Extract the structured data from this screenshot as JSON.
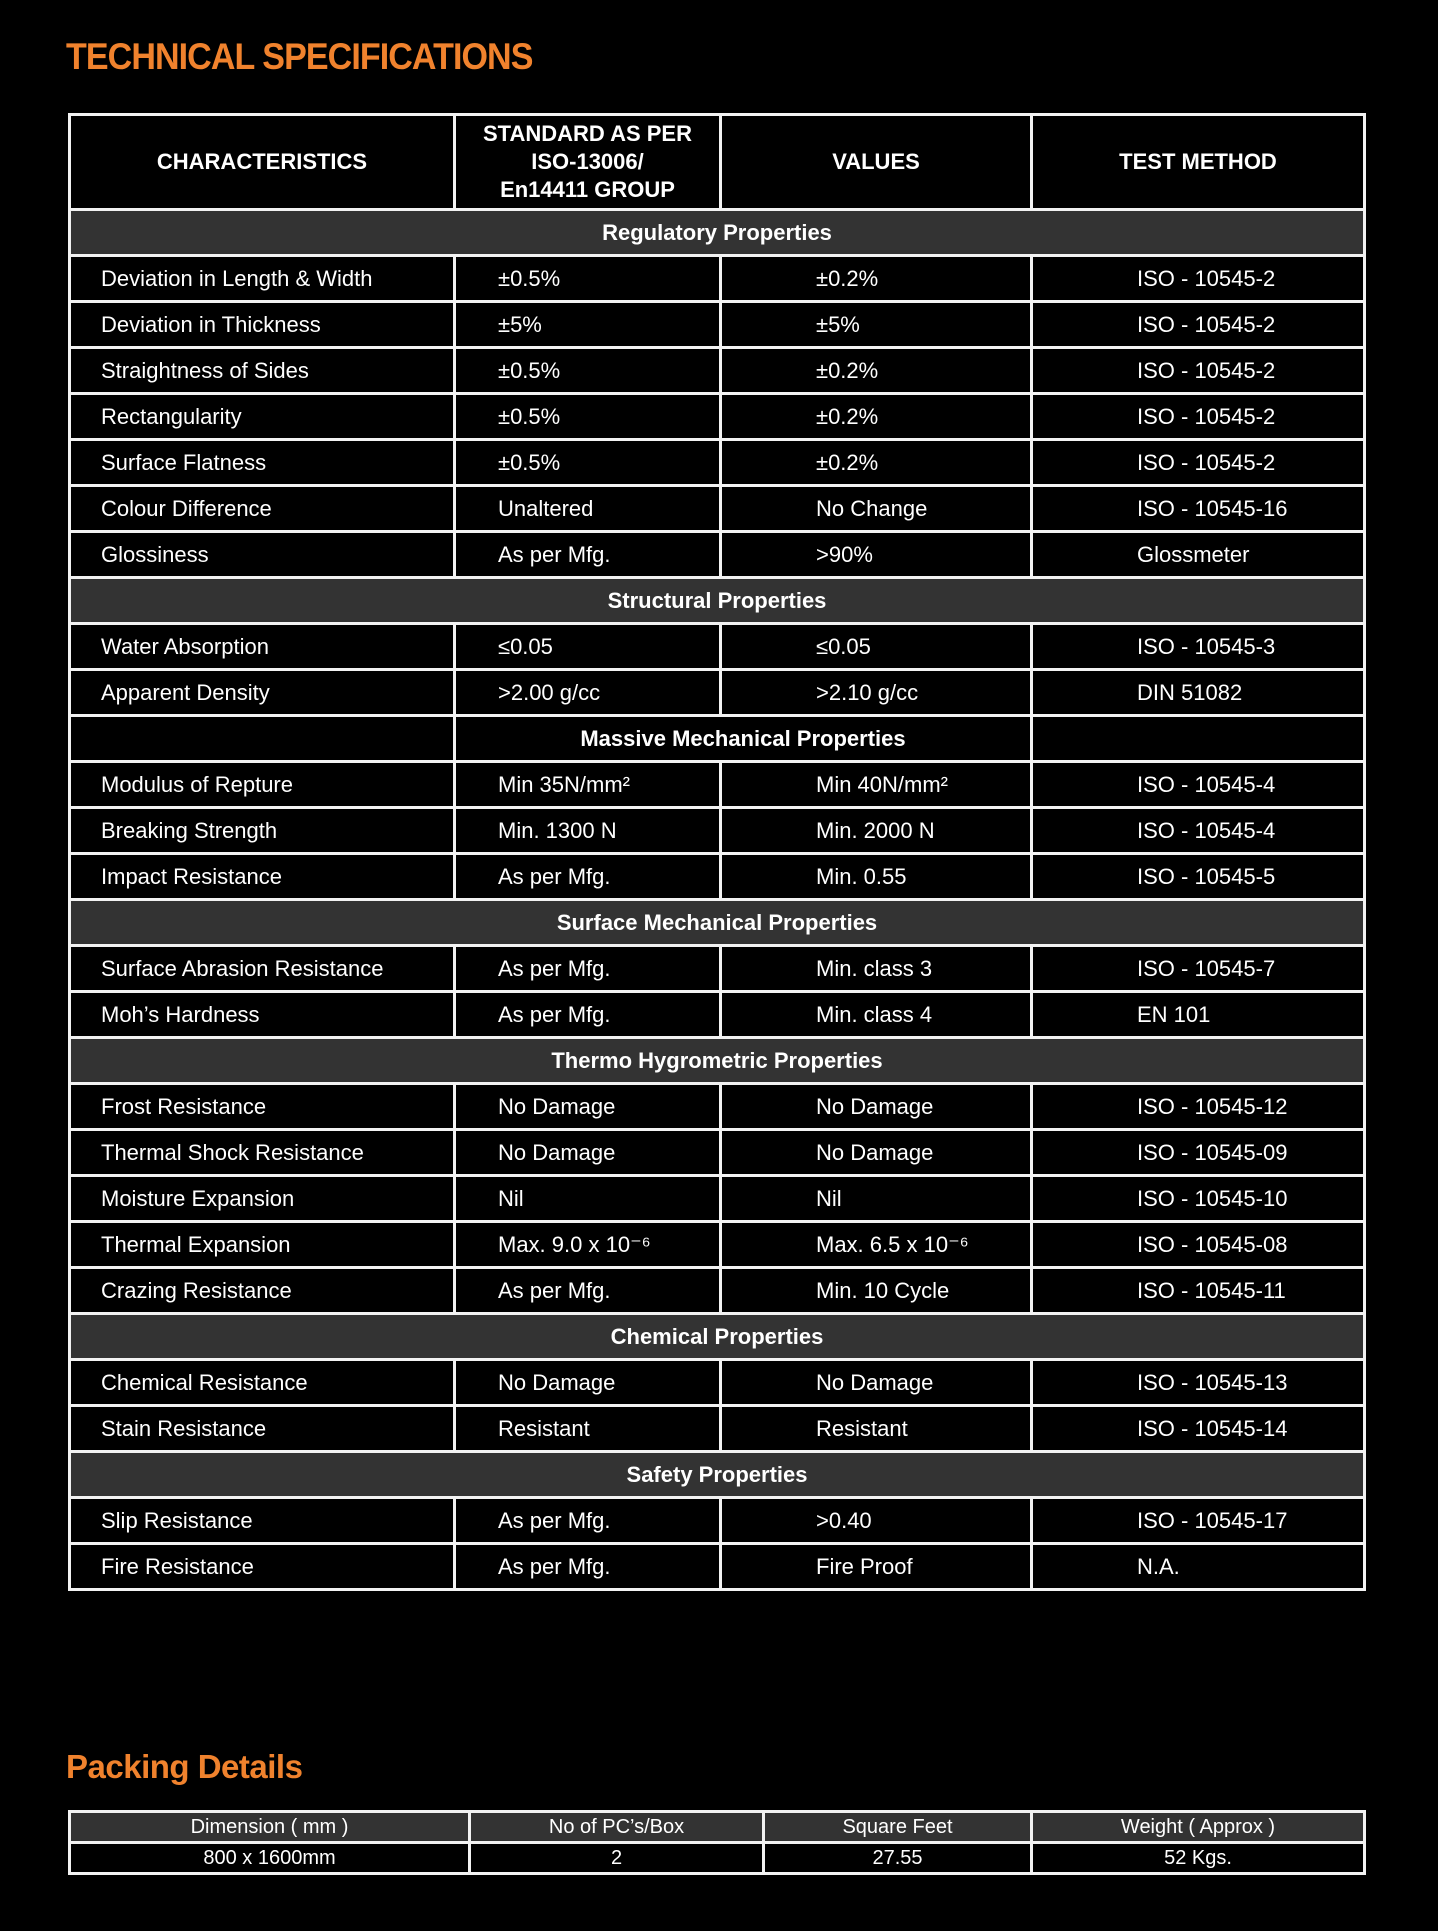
{
  "title": "TECHNICAL SPECIFICATIONS",
  "colors": {
    "accent": "#f0822d",
    "section_bg": "#333333",
    "background": "#000000"
  },
  "spec_table": {
    "headers": [
      "CHARACTERISTICS",
      "STANDARD AS PER ISO-13006/ En14411 GROUP",
      "VALUES",
      "TEST METHOD"
    ],
    "groups": [
      {
        "section": "Regulatory Properties",
        "rows": [
          [
            "Deviation in Length & Width",
            "±0.5%",
            "±0.2%",
            "ISO - 10545-2"
          ],
          [
            "Deviation in Thickness",
            "±5%",
            "±5%",
            "ISO - 10545-2"
          ],
          [
            "Straightness of Sides",
            "±0.5%",
            "±0.2%",
            "ISO - 10545-2"
          ],
          [
            "Rectangularity",
            "±0.5%",
            "±0.2%",
            "ISO - 10545-2"
          ],
          [
            "Surface Flatness",
            "±0.5%",
            "±0.2%",
            "ISO - 10545-2"
          ],
          [
            "Colour Difference",
            "Unaltered",
            "No Change",
            "ISO - 10545-16"
          ],
          [
            "Glossiness",
            "As per Mfg.",
            ">90%",
            "Glossmeter"
          ]
        ]
      },
      {
        "section": "Structural Properties",
        "rows": [
          [
            "Water Absorption",
            "≤0.05",
            "≤0.05",
            "ISO - 10545-3"
          ],
          [
            "Apparent Density",
            ">2.00 g/cc",
            ">2.10 g/cc",
            "DIN 51082"
          ]
        ]
      },
      {
        "section": "Massive Mechanical Properties",
        "partial": true,
        "rows": [
          [
            "Modulus of Repture",
            "Min 35N/mm²",
            "Min 40N/mm²",
            "ISO - 10545-4"
          ],
          [
            "Breaking Strength",
            "Min. 1300 N",
            "Min. 2000 N",
            "ISO - 10545-4"
          ],
          [
            "Impact Resistance",
            "As per Mfg.",
            "Min. 0.55",
            "ISO - 10545-5"
          ]
        ]
      },
      {
        "section": "Surface Mechanical Properties",
        "rows": [
          [
            "Surface Abrasion Resistance",
            "As per Mfg.",
            "Min. class 3",
            "ISO - 10545-7"
          ],
          [
            "Moh’s Hardness",
            "As per Mfg.",
            "Min. class 4",
            "EN 101"
          ]
        ]
      },
      {
        "section": "Thermo Hygrometric Properties",
        "rows": [
          [
            "Frost Resistance",
            "No Damage",
            "No Damage",
            "ISO - 10545-12"
          ],
          [
            "Thermal Shock Resistance",
            "No Damage",
            "No Damage",
            "ISO - 10545-09"
          ],
          [
            "Moisture Expansion",
            "Nil",
            "Nil",
            "ISO - 10545-10"
          ],
          [
            "Thermal Expansion",
            "Max. 9.0 x 10⁻⁶",
            "Max. 6.5 x 10⁻⁶",
            "ISO - 10545-08"
          ],
          [
            "Crazing Resistance",
            "As per Mfg.",
            "Min. 10 Cycle",
            "ISO - 10545-11"
          ]
        ]
      },
      {
        "section": "Chemical Properties",
        "rows": [
          [
            "Chemical Resistance",
            "No Damage",
            "No Damage",
            "ISO - 10545-13"
          ],
          [
            "Stain Resistance",
            "Resistant",
            "Resistant",
            "ISO - 10545-14"
          ]
        ]
      },
      {
        "section": "Safety Properties",
        "rows": [
          [
            "Slip Resistance",
            "As per Mfg.",
            ">0.40",
            "ISO - 10545-17"
          ],
          [
            "Fire Resistance",
            "As per Mfg.",
            "Fire Proof",
            "N.A."
          ]
        ]
      }
    ]
  },
  "packing": {
    "title": "Packing Details",
    "headers": [
      "Dimension ( mm )",
      "No of PC’s/Box",
      "Square Feet",
      "Weight ( Approx )"
    ],
    "values": [
      "800 x 1600mm",
      "2",
      "27.55",
      "52 Kgs."
    ]
  }
}
